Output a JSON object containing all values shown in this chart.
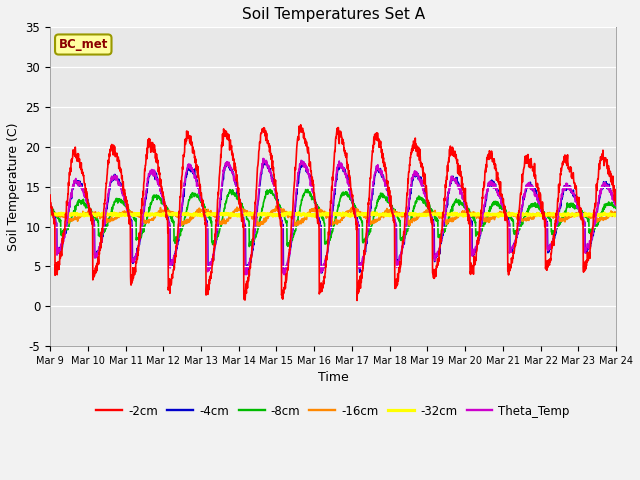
{
  "title": "Soil Temperatures Set A",
  "xlabel": "Time",
  "ylabel": "Soil Temperature (C)",
  "ylim": [
    -5,
    35
  ],
  "annotation": "BC_met",
  "bg_color": "#e8e8e8",
  "fig_facecolor": "#f2f2f2",
  "colors": {
    "-2cm": "#ff0000",
    "-4cm": "#0000cc",
    "-8cm": "#00bb00",
    "-16cm": "#ff8800",
    "-32cm": "#ffff00",
    "Theta_Temp": "#cc00cc"
  },
  "linewidths": {
    "-2cm": 1.2,
    "-4cm": 1.2,
    "-8cm": 1.2,
    "-16cm": 1.2,
    "-32cm": 1.8,
    "Theta_Temp": 1.2
  },
  "xtick_labels": [
    "Mar 9",
    "Mar 10",
    "Mar 11",
    "Mar 12",
    "Mar 13",
    "Mar 14",
    "Mar 15",
    "Mar 16",
    "Mar 17",
    "Mar 18",
    "Mar 19",
    "Mar 20",
    "Mar 21",
    "Mar 22",
    "Mar 23",
    "Mar 24"
  ],
  "ytick_labels": [
    -5,
    0,
    5,
    10,
    15,
    20,
    25,
    30,
    35
  ],
  "legend_order": [
    "-2cm",
    "-4cm",
    "-8cm",
    "-16cm",
    "-32cm",
    "Theta_Temp"
  ]
}
